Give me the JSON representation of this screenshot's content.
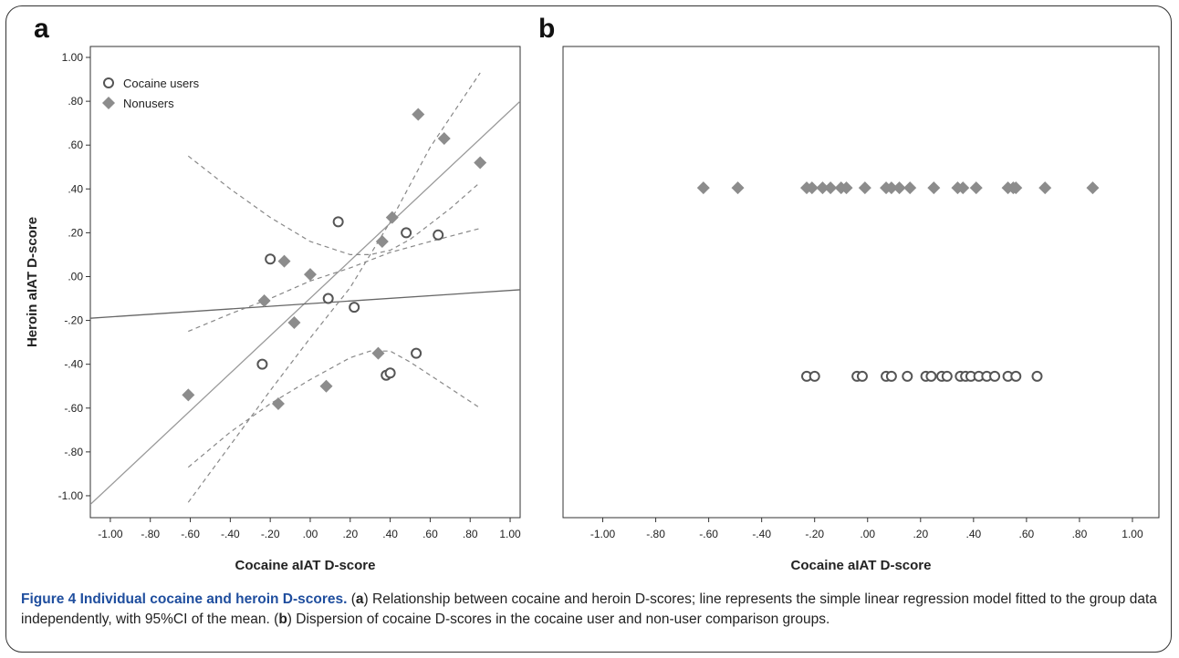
{
  "figure": {
    "caption_title": "Figure 4 Individual cocaine and heroin D-scores.",
    "caption_parts": [
      {
        "text": " (",
        "bold": false
      },
      {
        "text": "a",
        "bold": true
      },
      {
        "text": ") Relationship between cocaine and heroin D-scores; line represents the simple linear regression model fitted to the group data independently, with 95%CI of the mean. (",
        "bold": false
      },
      {
        "text": "b",
        "bold": true
      },
      {
        "text": ") Dispersion of cocaine D-scores in the cocaine user and non-user comparison groups.",
        "bold": false
      }
    ]
  },
  "chart_data": [
    {
      "panel": "a",
      "type": "scatter",
      "xlabel": "Cocaine aIAT D-score",
      "ylabel": "Heroin aIAT D-score",
      "xlim": [
        -1.1,
        1.05
      ],
      "ylim": [
        -1.1,
        1.05
      ],
      "x_ticks": [
        -1.0,
        -0.8,
        -0.6,
        -0.4,
        -0.2,
        0.0,
        0.2,
        0.4,
        0.6,
        0.8,
        1.0
      ],
      "x_tick_labels": [
        "-1.00",
        "-.80",
        "-.60",
        "-.40",
        "-.20",
        ".00",
        ".20",
        ".40",
        ".60",
        ".80",
        "1.00"
      ],
      "y_ticks": [
        1.0,
        0.8,
        0.6,
        0.4,
        0.2,
        0.0,
        -0.2,
        -0.4,
        -0.6,
        -0.8,
        -1.0
      ],
      "y_tick_labels": [
        "1.00",
        ".80",
        ".60",
        ".40",
        ".20",
        ".00",
        "-.20",
        "-.40",
        "-.60",
        "-.80",
        "-1.00"
      ],
      "legend_position": "top-left",
      "series": [
        {
          "name": "Cocaine users",
          "marker": "circle",
          "color": "#555555",
          "points": [
            [
              -0.2,
              0.08
            ],
            [
              0.14,
              0.25
            ],
            [
              0.09,
              -0.1
            ],
            [
              0.22,
              -0.14
            ],
            [
              -0.24,
              -0.4
            ],
            [
              0.38,
              -0.45
            ],
            [
              0.4,
              -0.44
            ],
            [
              0.53,
              -0.35
            ],
            [
              0.48,
              0.2
            ],
            [
              0.64,
              0.19
            ]
          ]
        },
        {
          "name": "Nonusers",
          "marker": "diamond",
          "color": "#8c8c8c",
          "points": [
            [
              -0.61,
              -0.54
            ],
            [
              -0.23,
              -0.11
            ],
            [
              -0.13,
              0.07
            ],
            [
              0.0,
              0.01
            ],
            [
              -0.08,
              -0.21
            ],
            [
              -0.16,
              -0.58
            ],
            [
              0.08,
              -0.5
            ],
            [
              0.34,
              -0.35
            ],
            [
              0.36,
              0.16
            ],
            [
              0.41,
              0.27
            ],
            [
              0.54,
              0.74
            ],
            [
              0.67,
              0.63
            ],
            [
              0.85,
              0.52
            ]
          ]
        }
      ],
      "regression_lines": [
        {
          "style": "solid",
          "color": "#999999",
          "from": [
            -1.1,
            -1.04
          ],
          "to": [
            1.05,
            0.8
          ]
        },
        {
          "style": "solid",
          "color": "#666666",
          "from": [
            -1.1,
            -0.19
          ],
          "to": [
            1.05,
            -0.06
          ]
        }
      ],
      "ci_curves": [
        {
          "color": "#888888",
          "points": [
            [
              -0.61,
              0.55
            ],
            [
              -0.4,
              0.4
            ],
            [
              -0.2,
              0.27
            ],
            [
              0.0,
              0.16
            ],
            [
              0.2,
              0.1
            ],
            [
              0.3,
              0.1
            ],
            [
              0.4,
              0.12
            ],
            [
              0.5,
              0.17
            ],
            [
              0.6,
              0.24
            ],
            [
              0.7,
              0.31
            ],
            [
              0.85,
              0.43
            ]
          ]
        },
        {
          "color": "#888888",
          "points": [
            [
              -0.61,
              -0.87
            ],
            [
              -0.4,
              -0.71
            ],
            [
              -0.2,
              -0.58
            ],
            [
              0.0,
              -0.47
            ],
            [
              0.2,
              -0.37
            ],
            [
              0.3,
              -0.34
            ],
            [
              0.4,
              -0.34
            ],
            [
              0.5,
              -0.39
            ],
            [
              0.6,
              -0.45
            ],
            [
              0.7,
              -0.51
            ],
            [
              0.85,
              -0.6
            ]
          ]
        },
        {
          "color": "#888888",
          "points": [
            [
              -0.61,
              -0.25
            ],
            [
              -0.4,
              -0.17
            ],
            [
              -0.2,
              -0.1
            ],
            [
              0.0,
              -0.02
            ],
            [
              0.2,
              0.04
            ],
            [
              0.4,
              0.11
            ],
            [
              0.6,
              0.16
            ],
            [
              0.85,
              0.22
            ]
          ]
        },
        {
          "color": "#888888",
          "points": [
            [
              -0.61,
              -1.03
            ],
            [
              -0.4,
              -0.77
            ],
            [
              -0.2,
              -0.52
            ],
            [
              0.0,
              -0.28
            ],
            [
              0.2,
              -0.05
            ],
            [
              0.4,
              0.25
            ],
            [
              0.6,
              0.59
            ],
            [
              0.85,
              0.93
            ]
          ]
        }
      ]
    },
    {
      "panel": "b",
      "type": "scatter",
      "xlabel": "Cocaine aIAT D-score",
      "xlim": [
        -1.15,
        1.1
      ],
      "x_ticks": [
        -1.0,
        -0.8,
        -0.6,
        -0.4,
        -0.2,
        0.0,
        0.2,
        0.4,
        0.6,
        0.8,
        1.0
      ],
      "x_tick_labels": [
        "-1.00",
        "-.80",
        "-.60",
        "-.40",
        "-.20",
        ".00",
        ".20",
        ".40",
        ".60",
        ".80",
        "1.00"
      ],
      "series": [
        {
          "name": "Nonusers",
          "marker": "diamond",
          "color": "#8c8c8c",
          "row_level": 0.7,
          "x": [
            -0.62,
            -0.49,
            -0.23,
            -0.21,
            -0.17,
            -0.14,
            -0.1,
            -0.08,
            -0.01,
            0.07,
            0.09,
            0.12,
            0.16,
            0.25,
            0.34,
            0.36,
            0.41,
            0.53,
            0.55,
            0.56,
            0.67,
            0.85
          ]
        },
        {
          "name": "Cocaine users",
          "marker": "circle",
          "color": "#555555",
          "row_level": 0.3,
          "x": [
            -0.23,
            -0.2,
            -0.04,
            -0.02,
            0.07,
            0.09,
            0.15,
            0.22,
            0.24,
            0.28,
            0.3,
            0.35,
            0.37,
            0.39,
            0.42,
            0.45,
            0.48,
            0.53,
            0.56,
            0.64
          ]
        }
      ]
    }
  ]
}
